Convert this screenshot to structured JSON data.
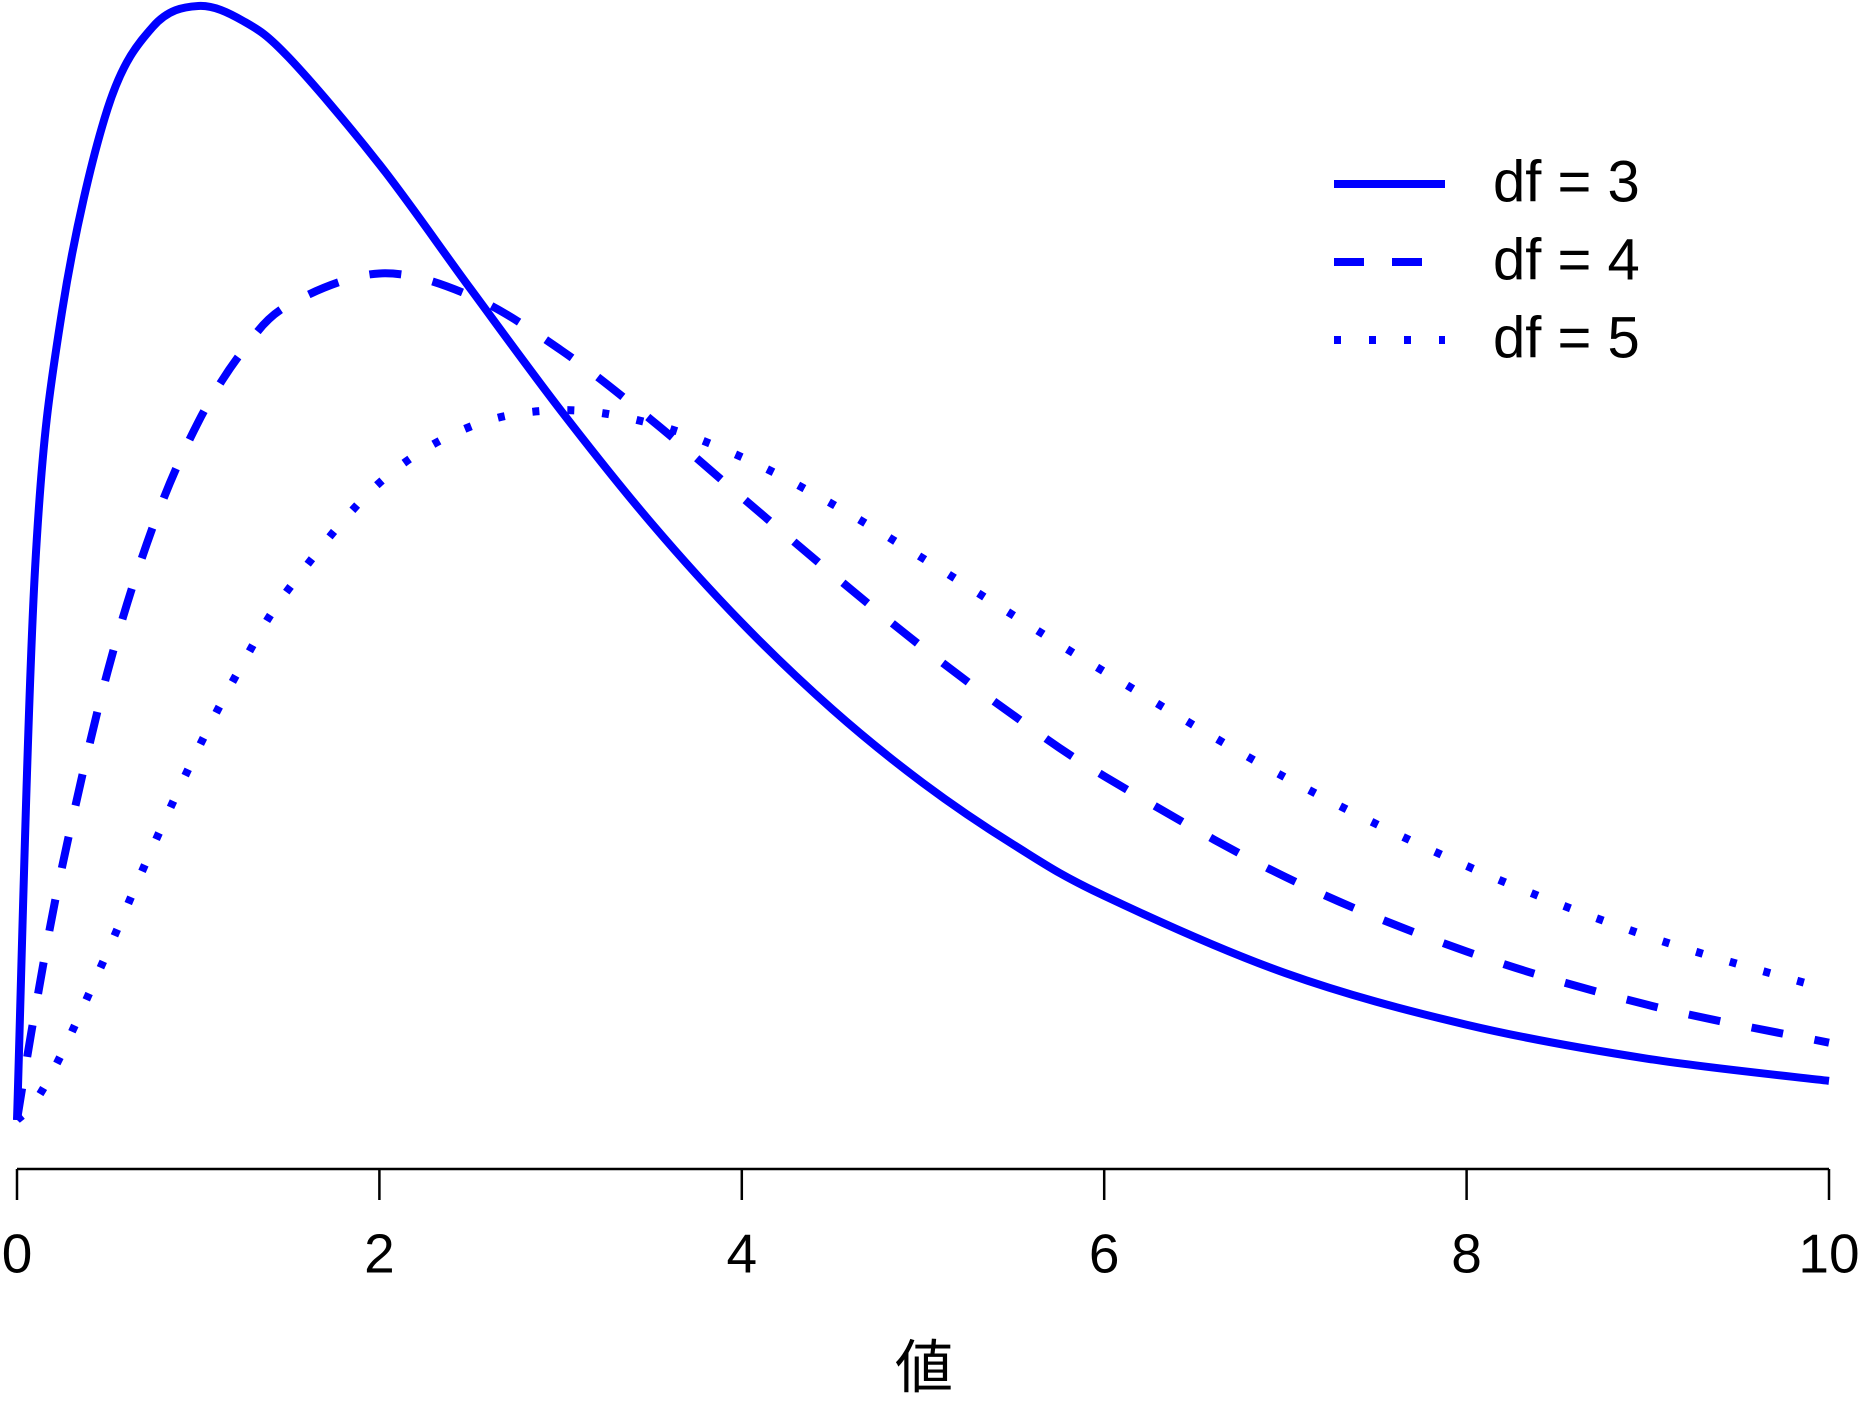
{
  "chart_data": {
    "type": "line",
    "x_label": "値",
    "x": [
      0,
      0.1,
      0.25,
      0.5,
      0.75,
      1,
      1.25,
      1.5,
      2,
      2.5,
      3,
      3.5,
      4,
      4.5,
      5,
      5.5,
      6,
      7,
      8,
      9,
      10
    ],
    "series": [
      {
        "name": "df = 3",
        "color": "#0000ff",
        "dash": "solid",
        "values": [
          0,
          0.12,
          0.176,
          0.2197,
          0.2375,
          0.242,
          0.2387,
          0.2308,
          0.2076,
          0.1807,
          0.1542,
          0.1297,
          0.108,
          0.0892,
          0.0732,
          0.0598,
          0.0487,
          0.0319,
          0.0207,
          0.0133,
          0.0085
        ]
      },
      {
        "name": "df = 4",
        "color": "#0000ff",
        "dash": "dashed",
        "values": [
          0,
          0.0238,
          0.0552,
          0.0974,
          0.1289,
          0.1516,
          0.1673,
          0.1771,
          0.1839,
          0.1791,
          0.1673,
          0.1521,
          0.1353,
          0.1186,
          0.1026,
          0.0879,
          0.0747,
          0.0528,
          0.0366,
          0.025,
          0.0168
        ]
      },
      {
        "name": "df = 5",
        "color": "#0000ff",
        "dash": "dotted",
        "values": [
          0,
          0.004,
          0.0147,
          0.0366,
          0.0594,
          0.0807,
          0.0995,
          0.1154,
          0.1384,
          0.1506,
          0.1542,
          0.1513,
          0.144,
          0.1338,
          0.122,
          0.1096,
          0.0974,
          0.0744,
          0.0552,
          0.0399,
          0.0283
        ]
      }
    ],
    "xlim": [
      0,
      10
    ],
    "xticks": [
      0,
      2,
      4,
      6,
      8,
      10
    ],
    "ylim": [
      0,
      0.242
    ],
    "legend": "top-right"
  }
}
